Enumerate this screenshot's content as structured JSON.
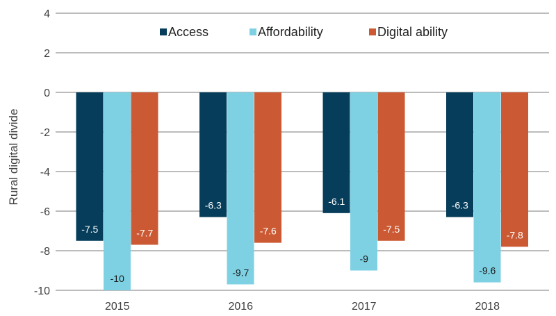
{
  "chart_data": {
    "type": "bar",
    "title": "",
    "xlabel": "",
    "ylabel": "Rural digital divide",
    "categories": [
      "2015",
      "2016",
      "2017",
      "2018"
    ],
    "series": [
      {
        "name": "Access",
        "color": "#063D5A",
        "label_color": "#ffffff",
        "values": [
          -7.5,
          -6.3,
          -6.1,
          -6.3
        ]
      },
      {
        "name": "Affordability",
        "color": "#7ED1E3",
        "label_color": "#1a1a1a",
        "values": [
          -10,
          -9.7,
          -9,
          -9.6
        ]
      },
      {
        "name": "Digital ability",
        "color": "#CB5A34",
        "label_color": "#ffffff",
        "values": [
          -7.7,
          -7.6,
          -7.5,
          -7.8
        ]
      }
    ],
    "data_labels": [
      [
        "-7.5",
        "-6.3",
        "-6.1",
        "-6.3"
      ],
      [
        "-10",
        "-9.7",
        "-9",
        "-9.6"
      ],
      [
        "-7.7",
        "-7.6",
        "-7.5",
        "-7.8"
      ]
    ],
    "ylim": [
      -10,
      4
    ],
    "yticks": [
      4,
      2,
      0,
      -2,
      -4,
      -6,
      -8,
      -10
    ],
    "ytick_labels": [
      "4",
      "2",
      "0",
      "-2",
      "-4",
      "-6",
      "-8",
      "-10"
    ],
    "grid": true,
    "grid_color": "#a6a6a6",
    "legend_position": "top-center"
  }
}
